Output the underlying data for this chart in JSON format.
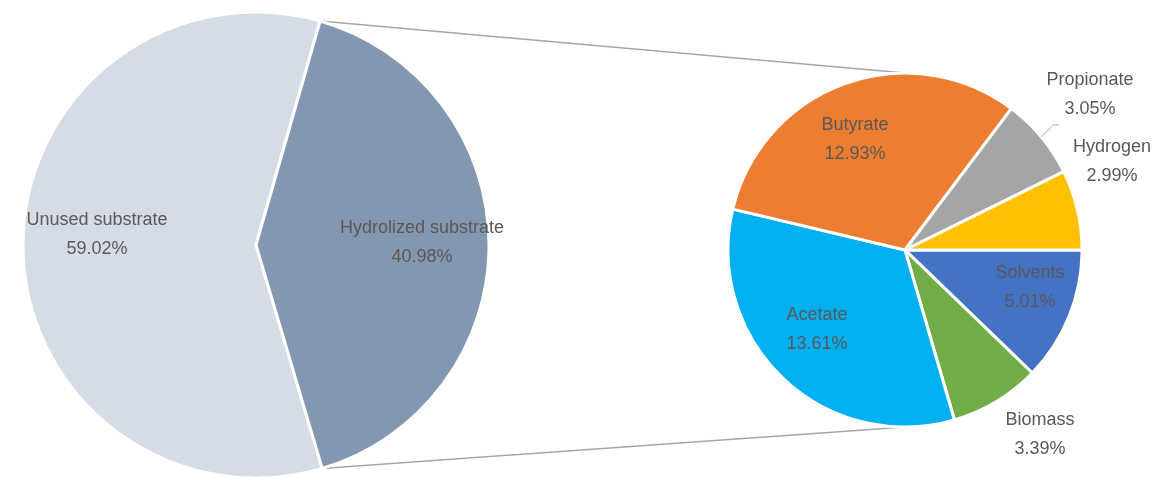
{
  "chart_data": [
    {
      "type": "pie",
      "categories": [
        "Unused substrate",
        "Hydrolized substrate"
      ],
      "values": [
        59.02,
        40.98
      ],
      "colors": [
        "#d6dce5",
        "#8497b0"
      ],
      "value_labels": [
        "59.02%",
        "40.98%"
      ]
    },
    {
      "type": "pie",
      "categories": [
        "Solvents",
        "Biomass",
        "Acetate",
        "Butyrate",
        "Propionate",
        "Hydrogen"
      ],
      "values": [
        5.01,
        3.39,
        13.61,
        12.93,
        3.05,
        2.99
      ],
      "colors": [
        "#4472c4",
        "#70ad47",
        "#00b0f0",
        "#ed7d31",
        "#a5a5a5",
        "#ffc000"
      ],
      "value_labels": [
        "5.01%",
        "3.39%",
        "13.61%",
        "12.93%",
        "3.05%",
        "2.99%"
      ]
    }
  ]
}
